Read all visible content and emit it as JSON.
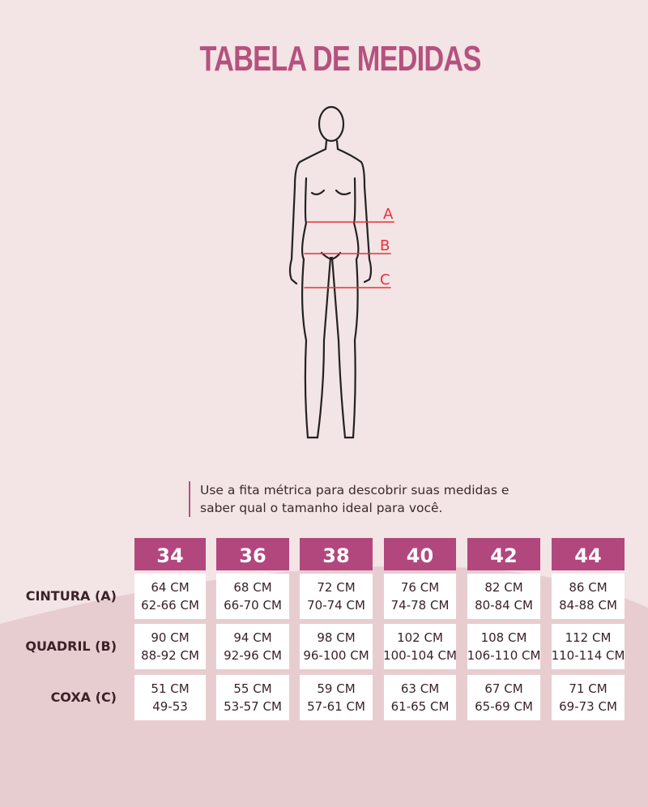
{
  "title": "TABELA DE MEDIDAS",
  "figure": {
    "markers": [
      "A",
      "B",
      "C"
    ],
    "marker_color": "#e8323a"
  },
  "note": [
    "Use a fita métrica para descobrir suas medidas e",
    "saber qual o tamanho ideal para você."
  ],
  "colors": {
    "accent": "#b2477e",
    "background": "#f3e4e5"
  },
  "table": {
    "sizes": [
      "34",
      "36",
      "38",
      "40",
      "42",
      "44"
    ],
    "rows": [
      {
        "label": "CINTURA (A)",
        "cells": [
          [
            "64 CM",
            "62-66 CM"
          ],
          [
            "68 CM",
            "66-70 CM"
          ],
          [
            "72 CM",
            "70-74 CM"
          ],
          [
            "76 CM",
            "74-78 CM"
          ],
          [
            "82 CM",
            "80-84 CM"
          ],
          [
            "86 CM",
            "84-88 CM"
          ]
        ]
      },
      {
        "label": "QUADRIL (B)",
        "cells": [
          [
            "90 CM",
            "88-92 CM"
          ],
          [
            "94 CM",
            "92-96 CM"
          ],
          [
            "98 CM",
            "96-100 CM"
          ],
          [
            "102 CM",
            "100-104 CM"
          ],
          [
            "108 CM",
            "106-110 CM"
          ],
          [
            "112 CM",
            "110-114 CM"
          ]
        ]
      },
      {
        "label": "COXA (C)",
        "cells": [
          [
            "51 CM",
            "49-53"
          ],
          [
            "55 CM",
            "53-57 CM"
          ],
          [
            "59 CM",
            "57-61 CM"
          ],
          [
            "63 CM",
            "61-65 CM"
          ],
          [
            "67 CM",
            "65-69 CM"
          ],
          [
            "71 CM",
            "69-73 CM"
          ]
        ]
      }
    ]
  }
}
